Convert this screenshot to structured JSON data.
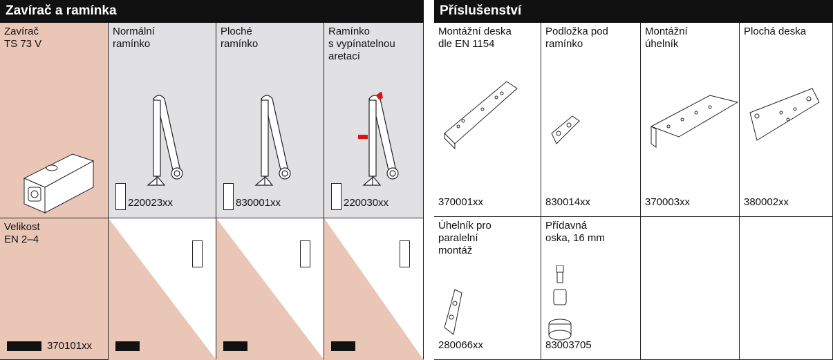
{
  "left": {
    "title": "Zavírač a ramínka",
    "closer": {
      "label": [
        "Zavírač",
        "TS 73 V"
      ]
    },
    "arms": [
      {
        "label": [
          "Normální",
          "ramínko"
        ],
        "code": "220023xx"
      },
      {
        "label": [
          "Ploché",
          "ramínko"
        ],
        "code": "830001xx"
      },
      {
        "label": [
          "Ramínko",
          "s vypínatelnou",
          "aretací"
        ],
        "code": "220030xx"
      }
    ],
    "size": {
      "label": [
        "Velikost",
        "EN 2–4"
      ],
      "code": "370101xx"
    }
  },
  "right": {
    "title": "Příslušenství",
    "items": [
      {
        "label": [
          "Montážní deska",
          "dle EN 1154"
        ],
        "code": "370001xx"
      },
      {
        "label": [
          "Podložka pod",
          "ramínko"
        ],
        "code": "830014xx"
      },
      {
        "label": [
          "Montážní",
          "úhelník"
        ],
        "code": "370003xx"
      },
      {
        "label": [
          "Plochá deska"
        ],
        "code": "380002xx"
      },
      {
        "label": [
          "Úhelník pro",
          "paralelní",
          "montáž"
        ],
        "code": "280066xx"
      },
      {
        "label": [
          "Přídavná",
          "oska, 16 mm"
        ],
        "code": "83003705"
      }
    ]
  }
}
